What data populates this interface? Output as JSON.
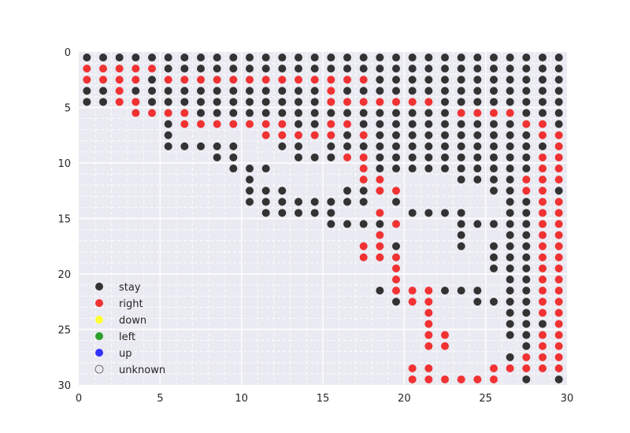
{
  "chart_data": {
    "type": "scatter",
    "title": "",
    "xlabel": "",
    "ylabel": "",
    "xlim": [
      0,
      30
    ],
    "ylim": [
      30,
      0
    ],
    "y_inverted": true,
    "grid": true,
    "xticks": [
      0,
      5,
      10,
      15,
      20,
      25,
      30
    ],
    "yticks": [
      0,
      5,
      10,
      15,
      20,
      25,
      30
    ],
    "legend_position": "lower-left",
    "legend": [
      {
        "name": "stay",
        "color": "#333333"
      },
      {
        "name": "right",
        "color": "#f03232"
      },
      {
        "name": "down",
        "color": "#ffff33"
      },
      {
        "name": "left",
        "color": "#2ca02c"
      },
      {
        "name": "up",
        "color": "#3333ff"
      },
      {
        "name": "unknown",
        "color": "none"
      }
    ],
    "points_note": "Grid cells at x = col + 0.5, y = row + 0.5. Codes: S = stay, R = right, '.' = no marker.",
    "grid_rows": [
      "SSSSSSSSSSSSSSSSSSSSSSSSSSSSSS",
      "RRRRRSSSSSSSSSSSSSSSSSSSSSSSSS",
      "RRRRSRRRRRRRRRRRRRSSSSSSSSSSSS",
      "SSRSSSSSSSSSSSSRSSSSSSSSSSSSSS",
      "SSRRSSSSSSSSSSSRRRRRRRSSSSSSSS",
      "...RRRRSSSSSSSSSSSSSSSSRRRRSSS",
      ".....SRRRRRRRSSRRSSSSSSSSSSRRS",
      ".....S.....RRRRRSRSSSSSSSSSSRR",
      ".....SSSSS..SS.SSSSSSSSSSSSSSR",
      "........SS...SSSRRSSSSSSSSSSRR",
      ".........SSS.....RSSSSSSSSSSRR",
      "..........S......RR....SSSSRRR",
      "..........SSS...SSRR.....SSRRS",
      "..........SSSSSSSS.S......SSRR",
      "...........SSSSS..R.SSSS..SSRR",
      "...............SSSSR...SSSSSRR",
      "..................R....S..SSRR",
      ".................RRS...S.SSSRR",
      ".................RRR.....SSSRR",
      "...................R.....SSSRR",
      "...................R......SSRR",
      "..................SRRRSSS.SSRR",
      "...................SRR..SSSSRR",
      ".....................R....SSRR",
      ".....................R....SSSR",
      ".....................RR...SSRR",
      ".....................RR....SRR",
      "..........................SRRR",
      "....................RR...RRRRR",
      "....................RRRRRR.S.S"
    ]
  }
}
